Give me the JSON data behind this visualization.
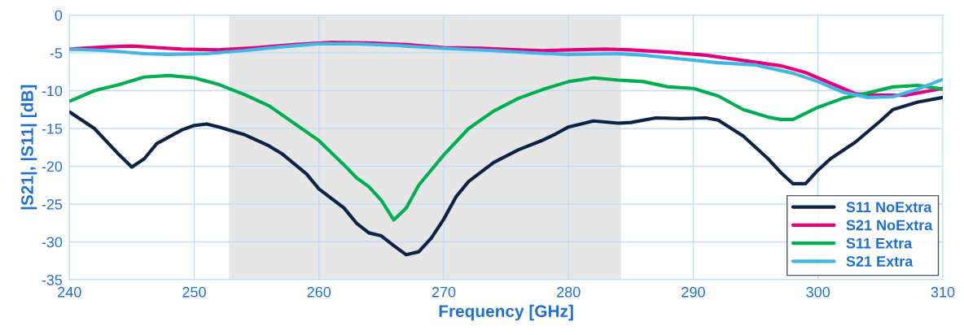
{
  "chart_data": {
    "type": "line",
    "xlabel": "Frequency [GHz]",
    "ylabel": "|S21|, |S11| [dB]",
    "xlim": [
      240,
      310
    ],
    "xticks": [
      240,
      250,
      260,
      270,
      280,
      290,
      300,
      310
    ],
    "ylim": [
      -35,
      0
    ],
    "yticks": [
      -35,
      -30,
      -25,
      -20,
      -15,
      -10,
      -5,
      0
    ],
    "grid": true,
    "legend": "bottom right",
    "line_style": "solid",
    "marker": "none",
    "bands": [
      {
        "axis": "x",
        "from": 252.8,
        "to": 284.2,
        "color": "#e6e6e6"
      }
    ],
    "series": [
      {
        "name": "S11 NoExtra",
        "color": "#0b2346",
        "x": [
          240,
          242,
          244,
          245,
          246,
          247,
          249,
          250,
          251,
          252,
          254,
          256,
          257,
          259,
          260,
          262,
          263,
          264,
          265,
          266,
          267,
          268,
          269,
          270,
          271,
          272,
          274,
          276,
          278,
          279,
          280,
          282,
          284,
          285,
          287,
          289,
          291,
          292,
          294,
          296,
          297,
          298,
          299,
          300,
          301,
          303,
          305,
          306,
          308,
          310
        ],
        "values": [
          -12.8,
          -15,
          -18.5,
          -20.1,
          -19,
          -17,
          -15.2,
          -14.6,
          -14.4,
          -14.8,
          -15.8,
          -17.3,
          -18.3,
          -21,
          -23,
          -25.5,
          -27.5,
          -28.8,
          -29.2,
          -30.5,
          -31.7,
          -31.3,
          -29.5,
          -27,
          -24,
          -22,
          -19.5,
          -17.8,
          -16.5,
          -15.7,
          -14.8,
          -14,
          -14.3,
          -14.2,
          -13.6,
          -13.7,
          -13.6,
          -13.9,
          -16,
          -19,
          -20.8,
          -22.3,
          -22.3,
          -20.5,
          -19,
          -16.8,
          -14,
          -12.5,
          -11.5,
          -10.9
        ]
      },
      {
        "name": "S21 NoExtra",
        "color": "#e5007e",
        "x": [
          240,
          243,
          245,
          247,
          249,
          252,
          255,
          258,
          261,
          264,
          267,
          270,
          273,
          276,
          278,
          280,
          283,
          285,
          288,
          291,
          294,
          297,
          299,
          301,
          303,
          305,
          307,
          310
        ],
        "values": [
          -4.5,
          -4.2,
          -4.1,
          -4.3,
          -4.5,
          -4.6,
          -4.3,
          -3.9,
          -3.6,
          -3.7,
          -3.9,
          -4.3,
          -4.4,
          -4.6,
          -4.7,
          -4.6,
          -4.5,
          -4.6,
          -4.9,
          -5.3,
          -6,
          -6.7,
          -7.6,
          -9,
          -10.4,
          -10.6,
          -10.6,
          -9.7
        ]
      },
      {
        "name": "S11 Extra",
        "color": "#00b050",
        "x": [
          240,
          242,
          244,
          246,
          248,
          250,
          252,
          254,
          256,
          258,
          260,
          262,
          263,
          264,
          265,
          266,
          267,
          268,
          270,
          272,
          274,
          276,
          278,
          280,
          282,
          284,
          286,
          288,
          290,
          292,
          294,
          296,
          297,
          298,
          299,
          300,
          302,
          304,
          306,
          308,
          310
        ],
        "values": [
          -11.4,
          -10,
          -9.2,
          -8.2,
          -8,
          -8.3,
          -9.2,
          -10.5,
          -12,
          -14.3,
          -16.6,
          -19.8,
          -21.5,
          -22.7,
          -24.5,
          -27.1,
          -25.5,
          -22.5,
          -18.5,
          -15,
          -12.7,
          -11,
          -9.8,
          -8.8,
          -8.3,
          -8.6,
          -8.8,
          -9.5,
          -9.7,
          -10.7,
          -12.5,
          -13.5,
          -13.8,
          -13.8,
          -13,
          -12.2,
          -11,
          -10.3,
          -9.5,
          -9.3,
          -9.8
        ]
      },
      {
        "name": "S21 Extra",
        "color": "#41b6e6",
        "x": [
          240,
          243,
          246,
          248,
          251,
          254,
          257,
          260,
          263,
          266,
          270,
          274,
          277,
          280,
          284,
          286,
          289,
          292,
          295,
          298,
          300,
          302,
          304,
          306,
          308,
          310
        ],
        "values": [
          -4.5,
          -4.7,
          -5.1,
          -5.2,
          -5.1,
          -4.7,
          -4.2,
          -3.8,
          -3.8,
          -4,
          -4.4,
          -4.7,
          -5,
          -5.2,
          -5.1,
          -5.3,
          -5.8,
          -6.3,
          -6.6,
          -7.7,
          -8.8,
          -10.2,
          -10.9,
          -10.8,
          -9.8,
          -8.5
        ]
      }
    ]
  }
}
